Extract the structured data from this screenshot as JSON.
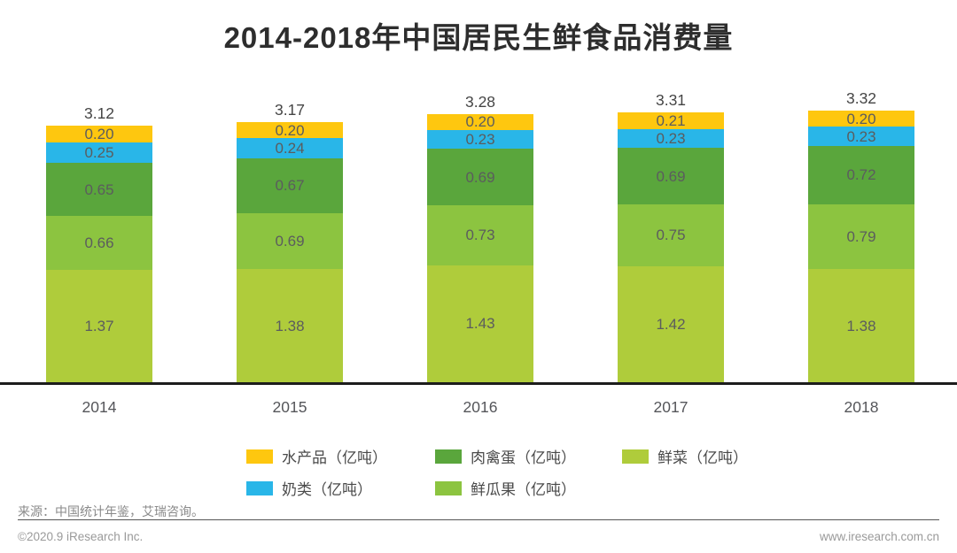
{
  "title": "2014-2018年中国居民生鲜食品消费量",
  "chart_data": {
    "type": "bar",
    "stacked": true,
    "unit": "亿吨",
    "grid": false,
    "legend_position": "bottom",
    "ylim": [
      0,
      3.5
    ],
    "categories": [
      "2014",
      "2015",
      "2016",
      "2017",
      "2018"
    ],
    "series": [
      {
        "name": "鲜菜",
        "legend_label": "鲜菜（亿吨）",
        "color": "#afcc3b",
        "values": [
          1.37,
          1.38,
          1.43,
          1.42,
          1.38
        ]
      },
      {
        "name": "鲜瓜果",
        "legend_label": "鲜瓜果（亿吨）",
        "color": "#8cc440",
        "values": [
          0.66,
          0.69,
          0.73,
          0.75,
          0.79
        ]
      },
      {
        "name": "肉禽蛋",
        "legend_label": "肉禽蛋（亿吨）",
        "color": "#5aa63c",
        "values": [
          0.65,
          0.67,
          0.69,
          0.69,
          0.72
        ]
      },
      {
        "name": "奶类",
        "legend_label": "奶类（亿吨）",
        "color": "#29b6e8",
        "values": [
          0.25,
          0.24,
          0.23,
          0.23,
          0.23
        ]
      },
      {
        "name": "水产品",
        "legend_label": "水产品（亿吨）",
        "color": "#fec70f",
        "values": [
          0.2,
          0.2,
          0.2,
          0.21,
          0.2
        ]
      }
    ],
    "totals": [
      3.12,
      3.17,
      3.28,
      3.31,
      3.32
    ],
    "legend_order": [
      "水产品",
      "肉禽蛋",
      "鲜菜",
      "奶类",
      "鲜瓜果"
    ]
  },
  "footer": {
    "source": "来源：中国统计年鉴，艾瑞咨询。",
    "copyright": "©2020.9 iResearch Inc.",
    "website": "www.iresearch.com.cn"
  }
}
